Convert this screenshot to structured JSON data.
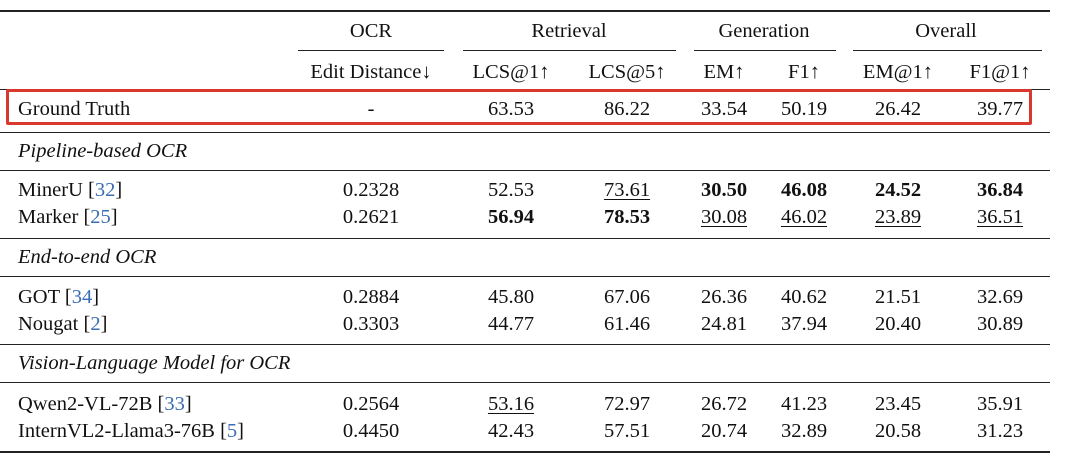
{
  "groups": {
    "ocr": "OCR",
    "retrieval": "Retrieval",
    "generation": "Generation",
    "overall": "Overall"
  },
  "subheaders": {
    "edit_distance": "Edit Distance↓",
    "lcs1": "LCS@1↑",
    "lcs5": "LCS@5↑",
    "em": "EM↑",
    "f1": "F1↑",
    "em1": "EM@1↑",
    "f11": "F1@1↑"
  },
  "highlight_color": "#d9382f",
  "citation_color": "#3b6db5",
  "ground_truth": {
    "name": "Ground Truth",
    "edit_distance": "-",
    "lcs1": "63.53",
    "lcs5": "86.22",
    "em": "33.54",
    "f1": "50.19",
    "em1": "26.42",
    "f11": "39.77"
  },
  "sections": [
    {
      "title": "Pipeline-based OCR",
      "rows": [
        {
          "name": "MinerU",
          "cite": "32",
          "edit_distance": "0.2328",
          "lcs1": "52.53",
          "lcs5": "73.61",
          "em": "30.50",
          "f1": "46.08",
          "em1": "24.52",
          "f11": "36.84"
        },
        {
          "name": "Marker",
          "cite": "25",
          "edit_distance": "0.2621",
          "lcs1": "56.94",
          "lcs5": "78.53",
          "em": "30.08",
          "f1": "46.02",
          "em1": "23.89",
          "f11": "36.51"
        }
      ]
    },
    {
      "title": "End-to-end OCR",
      "rows": [
        {
          "name": "GOT",
          "cite": "34",
          "edit_distance": "0.2884",
          "lcs1": "45.80",
          "lcs5": "67.06",
          "em": "26.36",
          "f1": "40.62",
          "em1": "21.51",
          "f11": "32.69"
        },
        {
          "name": "Nougat",
          "cite": "2",
          "edit_distance": "0.3303",
          "lcs1": "44.77",
          "lcs5": "61.46",
          "em": "24.81",
          "f1": "37.94",
          "em1": "20.40",
          "f11": "30.89"
        }
      ]
    },
    {
      "title": "Vision-Language Model for OCR",
      "rows": [
        {
          "name": "Qwen2-VL-72B",
          "cite": "33",
          "edit_distance": "0.2564",
          "lcs1": "53.16",
          "lcs5": "72.97",
          "em": "26.72",
          "f1": "41.23",
          "em1": "23.45",
          "f11": "35.91"
        },
        {
          "name": "InternVL2-Llama3-76B",
          "cite": "5",
          "edit_distance": "0.4450",
          "lcs1": "42.43",
          "lcs5": "57.51",
          "em": "20.74",
          "f1": "32.89",
          "em1": "20.58",
          "f11": "31.23"
        }
      ]
    }
  ]
}
